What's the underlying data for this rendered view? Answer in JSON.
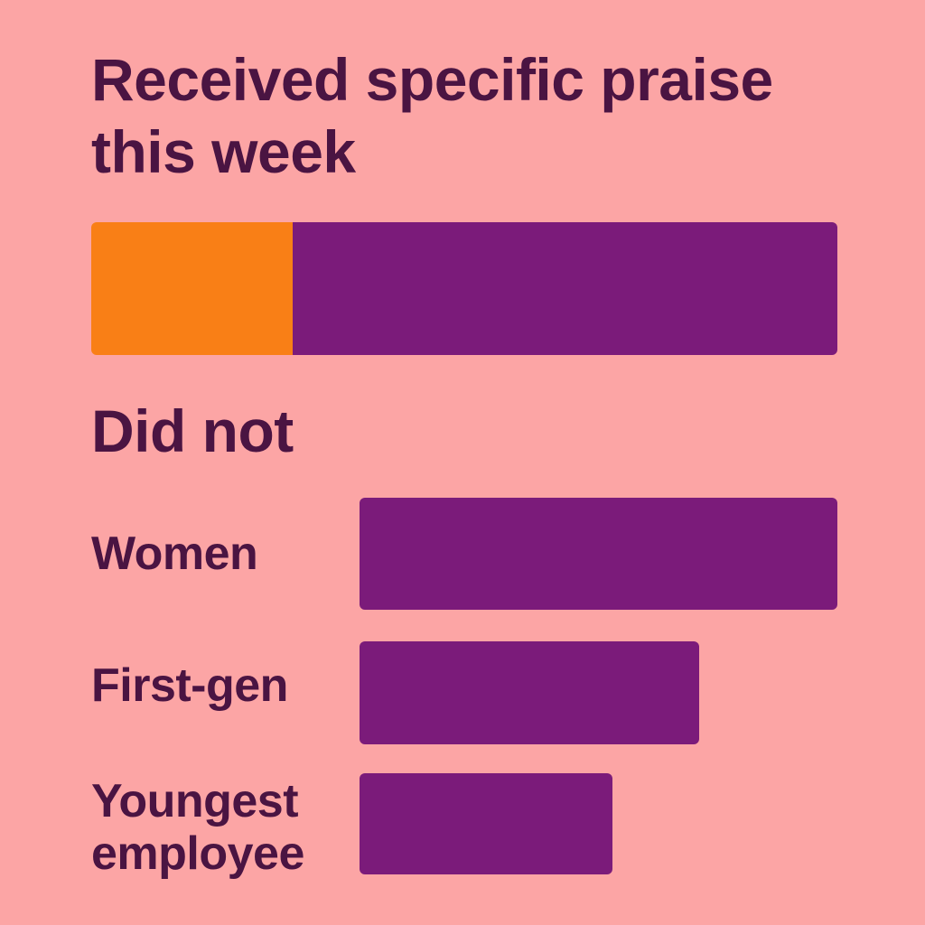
{
  "colors": {
    "background": "#FCA5A5",
    "text": "#4A1442",
    "praised": "#F97F16",
    "not_praised": "#7B1B7A"
  },
  "chart_data": [
    {
      "type": "bar",
      "orientation": "horizontal",
      "stacked": true,
      "title": "Received specific praise this week",
      "segments": [
        {
          "name": "Received specific praise",
          "value": 27
        },
        {
          "name": "Did not",
          "value": 73
        }
      ],
      "xlim": [
        0,
        100
      ]
    },
    {
      "type": "bar",
      "orientation": "horizontal",
      "title": "Did not",
      "categories": [
        "Women",
        "First-gen",
        "Youngest employee"
      ],
      "values": [
        100,
        71,
        53
      ],
      "xlim": [
        0,
        100
      ]
    }
  ]
}
